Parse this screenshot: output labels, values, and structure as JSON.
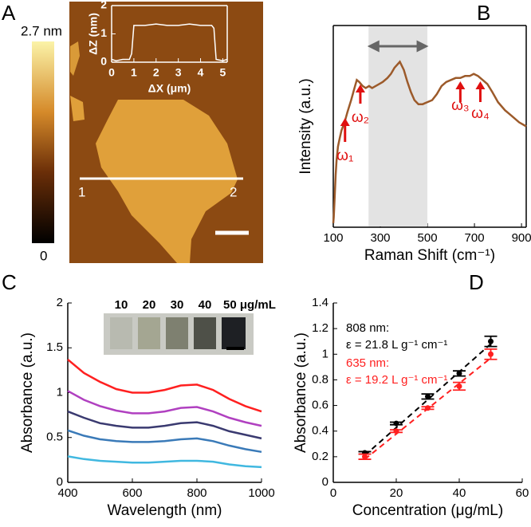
{
  "panels": [
    "A",
    "B",
    "C",
    "D"
  ],
  "afm_image": {
    "colorbar_max_label": "2.7 nm",
    "colorbar_min_label": "0",
    "line_start_label": "1",
    "line_end_label": "2"
  },
  "chart_data": [
    {
      "type": "line",
      "xlabel": "ΔX (μm)",
      "ylabel": "ΔZ (nm)",
      "color": "#ffffff",
      "x": [
        0,
        0.2,
        0.5,
        0.8,
        0.9,
        1.0,
        1.5,
        2,
        2.5,
        3,
        3.5,
        4,
        4.5,
        4.6,
        4.7,
        5,
        5.2
      ],
      "values": [
        0.1,
        0.05,
        0.1,
        0.1,
        0.3,
        1.3,
        1.3,
        1.35,
        1.3,
        1.3,
        1.35,
        1.3,
        1.3,
        1.2,
        0.1,
        0.05,
        0.1
      ],
      "xlim": [
        0,
        5.2
      ],
      "xticks": [
        0,
        1,
        2,
        3,
        4,
        5
      ],
      "ylim": [
        0,
        2
      ],
      "yticks": [
        0,
        1,
        2
      ]
    },
    {
      "type": "line",
      "xlabel": "Raman Shift (cm⁻¹)",
      "ylabel": "Intensity (a.u.)",
      "color": "#9c5a2a",
      "x": [
        100,
        102,
        104,
        107,
        110,
        114,
        120,
        127,
        135,
        148,
        160,
        176,
        190,
        200,
        210,
        225,
        238,
        252,
        265,
        280,
        295,
        310,
        330,
        345,
        360,
        383,
        400,
        415,
        430,
        445,
        462,
        480,
        500,
        520,
        540,
        560,
        580,
        600,
        620,
        640,
        660,
        680,
        697,
        715,
        735,
        755,
        776,
        800,
        830,
        860,
        890,
        920
      ],
      "values": [
        0.02,
        0.05,
        0.1,
        0.18,
        0.26,
        0.33,
        0.4,
        0.44,
        0.48,
        0.52,
        0.57,
        0.63,
        0.69,
        0.73,
        0.72,
        0.7,
        0.69,
        0.7,
        0.69,
        0.7,
        0.71,
        0.72,
        0.74,
        0.76,
        0.79,
        0.82,
        0.78,
        0.72,
        0.67,
        0.63,
        0.61,
        0.61,
        0.62,
        0.63,
        0.66,
        0.7,
        0.72,
        0.73,
        0.74,
        0.74,
        0.75,
        0.75,
        0.76,
        0.75,
        0.73,
        0.71,
        0.67,
        0.62,
        0.58,
        0.55,
        0.52,
        0.5
      ],
      "xlim": [
        100,
        920
      ],
      "xticks": [
        100,
        300,
        500,
        700,
        900
      ],
      "ylim": [
        0,
        1
      ],
      "highlight": [
        250,
        500
      ],
      "highlight_color": "#e3e3e3",
      "annotation_color": "#e01010",
      "annotations": [
        {
          "label": "ω₁",
          "x": 150
        },
        {
          "label": "ω₂",
          "x": 215
        },
        {
          "label": "ω₃",
          "x": 640
        },
        {
          "label": "ω₄",
          "x": 725
        }
      ]
    },
    {
      "type": "line",
      "xlabel": "Wavelength (nm)",
      "ylabel": "Absorbance (a.u.)",
      "x": [
        400,
        450,
        500,
        550,
        600,
        650,
        700,
        750,
        800,
        850,
        900,
        950,
        1000
      ],
      "series": [
        {
          "color": "#ff2020",
          "values": [
            1.37,
            1.22,
            1.12,
            1.04,
            1.0,
            1.0,
            1.03,
            1.08,
            1.09,
            1.03,
            0.93,
            0.85,
            0.79
          ]
        },
        {
          "color": "#b040c0",
          "values": [
            1.02,
            0.92,
            0.85,
            0.8,
            0.77,
            0.77,
            0.79,
            0.83,
            0.84,
            0.79,
            0.72,
            0.67,
            0.63
          ]
        },
        {
          "color": "#3a3a70",
          "values": [
            0.79,
            0.72,
            0.66,
            0.63,
            0.61,
            0.61,
            0.63,
            0.66,
            0.67,
            0.63,
            0.57,
            0.53,
            0.49
          ]
        },
        {
          "color": "#3a7ab8",
          "values": [
            0.58,
            0.52,
            0.48,
            0.46,
            0.45,
            0.45,
            0.46,
            0.48,
            0.49,
            0.46,
            0.41,
            0.37,
            0.34
          ]
        },
        {
          "color": "#40b8e0",
          "values": [
            0.29,
            0.26,
            0.24,
            0.23,
            0.22,
            0.22,
            0.23,
            0.24,
            0.24,
            0.23,
            0.2,
            0.18,
            0.17
          ]
        }
      ],
      "xlim": [
        400,
        1000
      ],
      "xticks": [
        400,
        600,
        800,
        1000
      ],
      "ylim": [
        0,
        2
      ],
      "yticks": [
        0,
        0.5,
        1,
        1.5,
        2
      ],
      "inset_labels": [
        "10",
        "20",
        "30",
        "40",
        "50 μg/mL"
      ]
    },
    {
      "type": "scatter",
      "xlabel": "Concentration (μg/mL)",
      "ylabel": "Absorbance (a.u.)",
      "x": [
        10,
        20,
        30,
        40,
        50
      ],
      "series": [
        {
          "color": "#000000",
          "values": [
            0.23,
            0.46,
            0.67,
            0.85,
            1.1
          ],
          "errors": [
            0.01,
            0.01,
            0.02,
            0.02,
            0.04
          ],
          "fit_x": [
            10,
            50
          ],
          "fit_y": [
            0.21,
            1.08
          ]
        },
        {
          "color": "#ff2020",
          "values": [
            0.2,
            0.4,
            0.58,
            0.75,
            1.0
          ],
          "errors": [
            0.02,
            0.01,
            0.01,
            0.03,
            0.04
          ],
          "fit_x": [
            10,
            50
          ],
          "fit_y": [
            0.18,
            0.97
          ]
        }
      ],
      "xlim": [
        0,
        60
      ],
      "xticks": [
        0,
        20,
        40,
        60
      ],
      "ylim": [
        0,
        1.4
      ],
      "yticks": [
        0,
        0.2,
        0.4,
        0.6,
        0.8,
        1,
        1.2,
        1.4
      ],
      "annotations": [
        {
          "text": "808 nm:",
          "color": "#000000"
        },
        {
          "text": "ε = 21.8 L g⁻¹ cm⁻¹",
          "color": "#000000"
        },
        {
          "text": "635 nm:",
          "color": "#ff2020"
        },
        {
          "text": "ε = 19.2 L g⁻¹ cm⁻¹",
          "color": "#ff2020"
        }
      ]
    }
  ]
}
